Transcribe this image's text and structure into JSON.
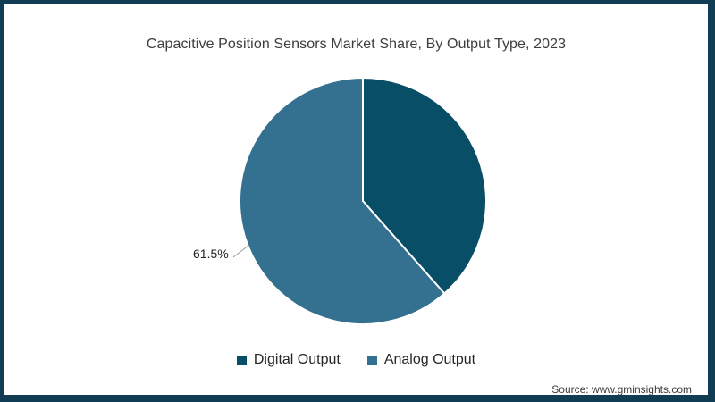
{
  "frame": {
    "border_color": "#103d54",
    "background": "#ffffff"
  },
  "chart_data": {
    "type": "pie",
    "title": "Capacitive Position Sensors Market Share, By Output Type, 2023",
    "start_angle_deg": 0,
    "direction": "clockwise",
    "legend_position": "bottom",
    "series": [
      {
        "name": "Digital Output",
        "value": 38.5,
        "color": "#084e66",
        "data_label": ""
      },
      {
        "name": "Analog Output",
        "value": 61.5,
        "color": "#34708f",
        "data_label": "61.5%"
      }
    ],
    "callout_label": "61.5%",
    "source": "Source: www.gminsights.com"
  }
}
